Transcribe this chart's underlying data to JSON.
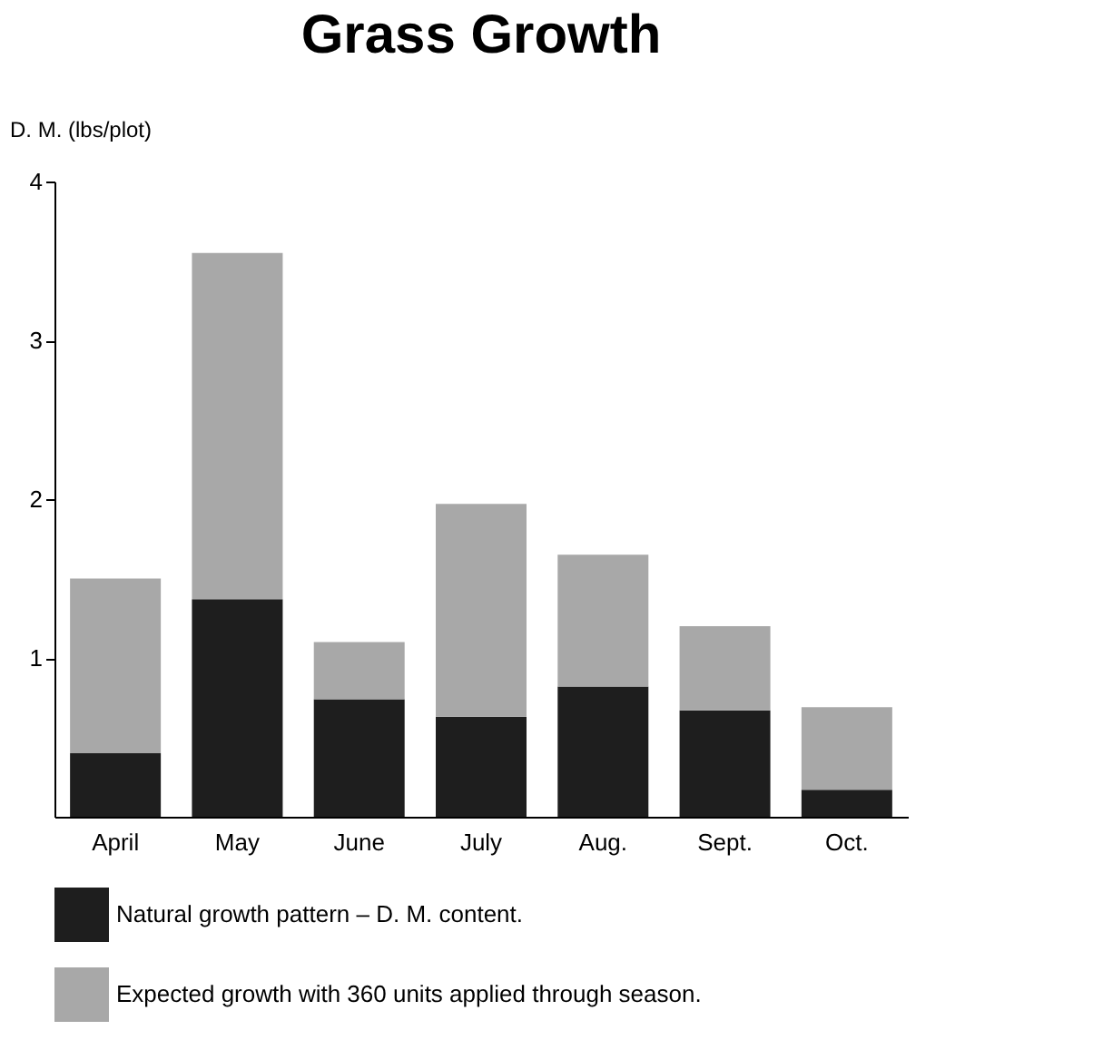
{
  "chart_data": {
    "type": "bar",
    "title": "Grass Growth",
    "ylabel": "D. M. (lbs/plot)",
    "categories": [
      "April",
      "May",
      "June",
      "July",
      "Aug.",
      "Sept.",
      "Oct."
    ],
    "stacked": true,
    "series": [
      {
        "name": "Natural growth pattern – D. M. content.",
        "color": "#1e1e1e",
        "values": [
          0.4,
          1.37,
          0.74,
          0.63,
          0.82,
          0.67,
          0.17
        ]
      },
      {
        "name": "Expected growth with 360 units applied through season.",
        "color": "#a8a8a8",
        "values": [
          1.1,
          2.18,
          0.36,
          1.34,
          0.83,
          0.53,
          0.52
        ]
      }
    ],
    "ylim": [
      0,
      4
    ],
    "yticks": [
      1,
      2,
      3,
      4
    ],
    "grid": false,
    "legend": "bottom"
  }
}
